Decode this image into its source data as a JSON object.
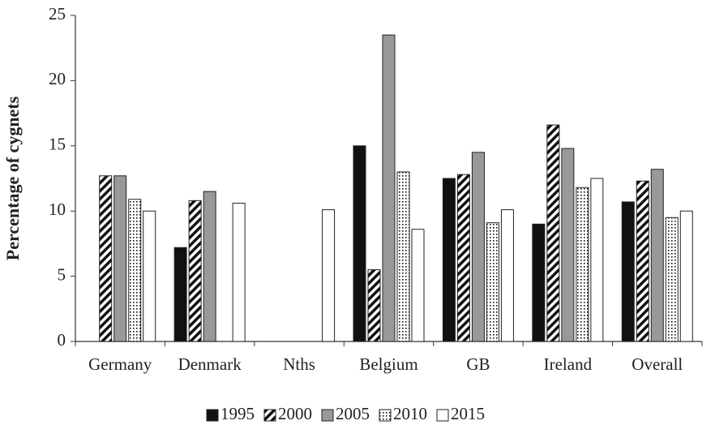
{
  "chart_data": {
    "type": "bar",
    "y_label": "Percentage of cygnets",
    "categories": [
      "Germany",
      "Denmark",
      "Nths",
      "Belgium",
      "GB",
      "Ireland",
      "Overall"
    ],
    "series": [
      {
        "name": "1995",
        "color": "#111111",
        "pattern": "solid",
        "values": [
          null,
          7.2,
          null,
          15.0,
          12.5,
          9.0,
          10.7
        ]
      },
      {
        "name": "2000",
        "color": "#111111",
        "pattern": "hatch",
        "values": [
          12.7,
          10.8,
          null,
          5.5,
          12.8,
          16.6,
          12.3
        ]
      },
      {
        "name": "2005",
        "color": "#999999",
        "pattern": "solid",
        "values": [
          12.7,
          11.5,
          null,
          23.5,
          14.5,
          14.8,
          13.2
        ]
      },
      {
        "name": "2010",
        "color": "#111111",
        "pattern": "dots",
        "values": [
          10.9,
          null,
          null,
          13.0,
          9.1,
          11.8,
          9.5
        ]
      },
      {
        "name": "2015",
        "color": "#ffffff",
        "pattern": "solid",
        "values": [
          10.0,
          10.6,
          10.1,
          8.6,
          10.1,
          12.5,
          10.0
        ]
      }
    ],
    "ylim": [
      0,
      25
    ],
    "yticks": [
      0,
      5,
      10,
      15,
      20,
      25
    ],
    "grid": false,
    "legend": "bottom"
  }
}
